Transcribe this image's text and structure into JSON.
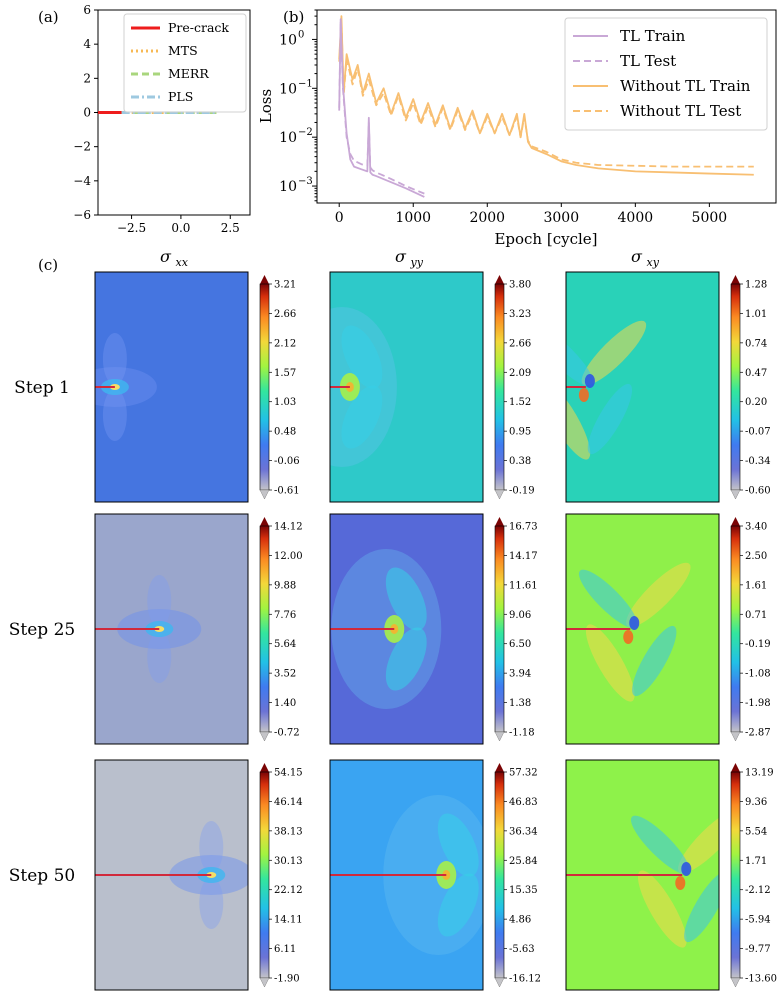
{
  "panel_labels": {
    "a": "(a)",
    "b": "(b)",
    "c": "(c)"
  },
  "chart_data": [
    {
      "id": "panel-a",
      "type": "line",
      "title": "",
      "xlabel": "",
      "ylabel": "",
      "xlim": [
        -4.2,
        3.5
      ],
      "ylim": [
        -6,
        6
      ],
      "xticks": [
        -2.5,
        0.0,
        2.5
      ],
      "xtick_labels": [
        "−2.5",
        "0.0",
        "2.5"
      ],
      "yticks": [
        -6,
        -4,
        -2,
        0,
        2,
        4,
        6
      ],
      "ytick_labels": [
        "−6",
        "−4",
        "−2",
        "0",
        "2",
        "4",
        "6"
      ],
      "legend_position": "top-right",
      "series": [
        {
          "name": "Pre-crack",
          "color": "#ee1c1c",
          "dash": "solid",
          "x": [
            -4.2,
            -3.0
          ],
          "y": [
            0,
            0
          ]
        },
        {
          "name": "MTS",
          "color": "#f7b955",
          "dash": "dotted",
          "x": [
            -3.0,
            1.8
          ],
          "y": [
            0,
            0
          ]
        },
        {
          "name": "MERR",
          "color": "#a9d67d",
          "dash": "dashed",
          "x": [
            -3.0,
            1.8
          ],
          "y": [
            0,
            0
          ]
        },
        {
          "name": "PLS",
          "color": "#9ec9e0",
          "dash": "dashdot",
          "x": [
            -3.0,
            1.8
          ],
          "y": [
            0,
            0
          ]
        }
      ]
    },
    {
      "id": "panel-b",
      "type": "line",
      "title": "",
      "xlabel": "Epoch [cycle]",
      "ylabel": "Loss",
      "yscale": "log",
      "xlim": [
        -300,
        5900
      ],
      "ylim": [
        0.00045,
        4.0
      ],
      "xticks": [
        0,
        1000,
        2000,
        3000,
        4000,
        5000
      ],
      "xtick_labels": [
        "0",
        "1000",
        "2000",
        "3000",
        "4000",
        "5000"
      ],
      "yticks": [
        0.001,
        0.01,
        0.1,
        1
      ],
      "legend_position": "top-right",
      "series": [
        {
          "name": "TL Train",
          "color": "#c9a8d6",
          "dash": "solid",
          "x": [
            0,
            20,
            50,
            100,
            150,
            200,
            300,
            380,
            400,
            420,
            450,
            500,
            700,
            900,
            1150
          ],
          "y": [
            0.035,
            2.6,
            0.12,
            0.012,
            0.0035,
            0.0025,
            0.0022,
            0.002,
            0.025,
            0.0019,
            0.0017,
            0.0016,
            0.0012,
            0.0009,
            0.0006
          ]
        },
        {
          "name": "TL Test",
          "color": "#c9a8d6",
          "dash": "dashed",
          "x": [
            0,
            20,
            50,
            100,
            150,
            200,
            300,
            380,
            400,
            420,
            450,
            500,
            700,
            900,
            1150
          ],
          "y": [
            0.04,
            2.4,
            0.1,
            0.01,
            0.0045,
            0.0033,
            0.0028,
            0.0026,
            0.02,
            0.0024,
            0.0021,
            0.0019,
            0.0014,
            0.001,
            0.0007
          ]
        },
        {
          "name": "Without TL Train",
          "color": "#f8bf72",
          "dash": "solid",
          "x": [
            0,
            30,
            60,
            100,
            180,
            250,
            320,
            400,
            500,
            600,
            700,
            800,
            900,
            1000,
            1100,
            1200,
            1300,
            1400,
            1500,
            1600,
            1700,
            1800,
            1900,
            2000,
            2100,
            2200,
            2300,
            2400,
            2450,
            2500,
            2550,
            2600,
            2800,
            3000,
            3200,
            3500,
            4000,
            4500,
            5000,
            5600
          ],
          "y": [
            0.4,
            3.0,
            0.08,
            0.5,
            0.15,
            0.3,
            0.08,
            0.2,
            0.05,
            0.1,
            0.03,
            0.08,
            0.025,
            0.06,
            0.02,
            0.05,
            0.018,
            0.045,
            0.015,
            0.04,
            0.015,
            0.035,
            0.012,
            0.03,
            0.012,
            0.03,
            0.011,
            0.03,
            0.01,
            0.03,
            0.008,
            0.006,
            0.0045,
            0.0032,
            0.0027,
            0.0023,
            0.002,
            0.0019,
            0.0018,
            0.0017
          ]
        },
        {
          "name": "Without TL Test",
          "color": "#f8bf72",
          "dash": "dashed",
          "x": [
            0,
            30,
            60,
            100,
            180,
            250,
            320,
            400,
            500,
            600,
            700,
            800,
            900,
            1000,
            1100,
            1200,
            1300,
            1400,
            1500,
            1600,
            1700,
            1800,
            1900,
            2000,
            2100,
            2200,
            2300,
            2400,
            2450,
            2500,
            2550,
            2600,
            2800,
            3000,
            3200,
            3500,
            4000,
            4500,
            5000,
            5600
          ],
          "y": [
            0.35,
            2.5,
            0.07,
            0.4,
            0.12,
            0.25,
            0.07,
            0.15,
            0.045,
            0.08,
            0.028,
            0.07,
            0.022,
            0.05,
            0.018,
            0.042,
            0.016,
            0.04,
            0.014,
            0.035,
            0.014,
            0.03,
            0.012,
            0.026,
            0.012,
            0.026,
            0.011,
            0.026,
            0.01,
            0.026,
            0.0085,
            0.0065,
            0.005,
            0.0035,
            0.003,
            0.0027,
            0.0026,
            0.0025,
            0.0025,
            0.0025
          ]
        }
      ]
    },
    {
      "id": "panel-c",
      "type": "heatmap",
      "colormap": "turbo",
      "columns": [
        {
          "key": "xx",
          "symbol": "σ",
          "subscript": "xx"
        },
        {
          "key": "yy",
          "symbol": "σ",
          "subscript": "yy"
        },
        {
          "key": "xy",
          "symbol": "σ",
          "subscript": "xy"
        }
      ],
      "rows": [
        {
          "label": "Step 1",
          "crack_tip_x": 0.13,
          "bg": [
            "#4575e0",
            "#2ec9c9",
            "#29d2b8"
          ],
          "colorbars": [
            [
              "3.21",
              "2.66",
              "2.12",
              "1.57",
              "1.03",
              "0.48",
              "-0.06",
              "-0.61"
            ],
            [
              "3.80",
              "3.23",
              "2.66",
              "2.09",
              "1.52",
              "0.95",
              "0.38",
              "-0.19"
            ],
            [
              "1.28",
              "1.01",
              "0.74",
              "0.47",
              "0.20",
              "-0.07",
              "-0.34",
              "-0.60"
            ]
          ]
        },
        {
          "label": "Step 25",
          "crack_tip_x": 0.42,
          "bg": [
            "#9aa6cc",
            "#5669d8",
            "#8ff04a"
          ],
          "colorbars": [
            [
              "14.12",
              "12.00",
              "9.88",
              "7.76",
              "5.64",
              "3.52",
              "1.40",
              "-0.72"
            ],
            [
              "16.73",
              "14.17",
              "11.61",
              "9.06",
              "6.50",
              "3.94",
              "1.38",
              "-1.18"
            ],
            [
              "3.40",
              "2.50",
              "1.61",
              "0.71",
              "-0.19",
              "-1.08",
              "-1.98",
              "-2.87"
            ]
          ]
        },
        {
          "label": "Step 50",
          "crack_tip_x": 0.76,
          "bg": [
            "#b9bfcc",
            "#3aa4f2",
            "#8ef24a"
          ],
          "colorbars": [
            [
              "54.15",
              "46.14",
              "38.13",
              "30.13",
              "22.12",
              "14.11",
              "6.11",
              "-1.90"
            ],
            [
              "57.32",
              "46.83",
              "36.34",
              "25.84",
              "15.35",
              "4.86",
              "-5.63",
              "-16.12"
            ],
            [
              "13.19",
              "9.36",
              "5.54",
              "1.71",
              "-2.12",
              "-5.94",
              "-9.77",
              "-13.60"
            ]
          ]
        }
      ]
    }
  ]
}
